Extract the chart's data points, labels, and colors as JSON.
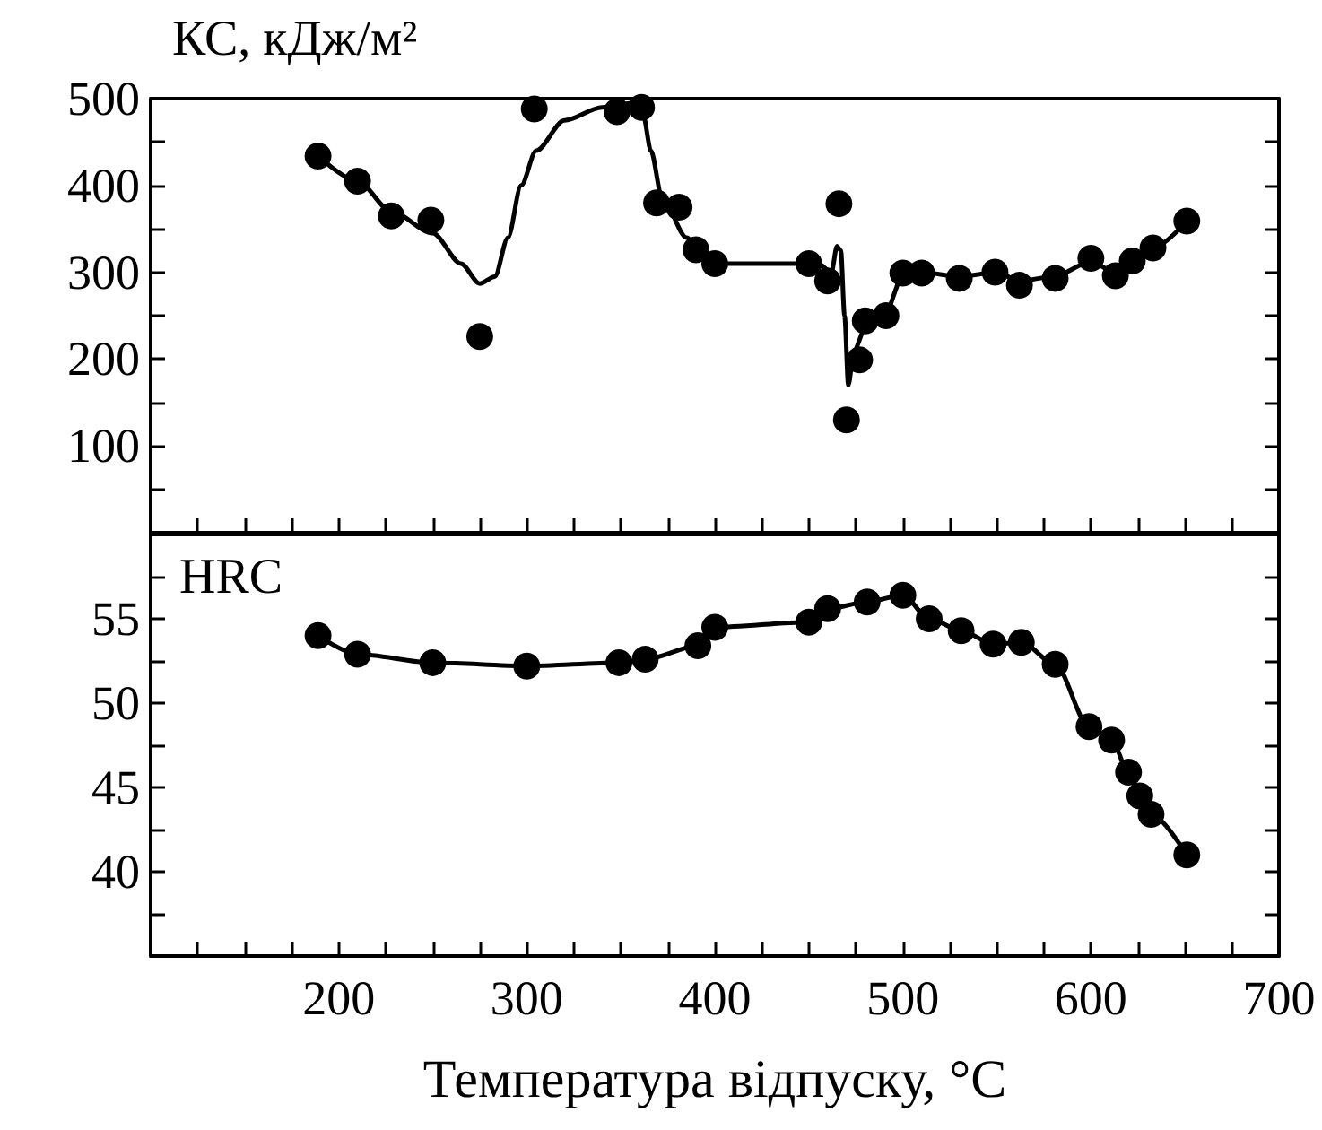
{
  "chart_data": [
    {
      "type": "scatter",
      "ylabel": "КС, кДж/м²",
      "xlim": [
        100,
        700
      ],
      "xticks": [
        {
          "value": 100,
          "label": null
        },
        {
          "value": 125,
          "label": null
        },
        {
          "value": 150,
          "label": null
        },
        {
          "value": 175,
          "label": null
        },
        {
          "value": 200,
          "label": null
        },
        {
          "value": 225,
          "label": null
        },
        {
          "value": 250,
          "label": null
        },
        {
          "value": 275,
          "label": null
        },
        {
          "value": 300,
          "label": null
        },
        {
          "value": 325,
          "label": null
        },
        {
          "value": 350,
          "label": null
        },
        {
          "value": 375,
          "label": null
        },
        {
          "value": 400,
          "label": null
        },
        {
          "value": 425,
          "label": null
        },
        {
          "value": 450,
          "label": null
        },
        {
          "value": 475,
          "label": null
        },
        {
          "value": 500,
          "label": null
        },
        {
          "value": 525,
          "label": null
        },
        {
          "value": 550,
          "label": null
        },
        {
          "value": 575,
          "label": null
        },
        {
          "value": 600,
          "label": null
        },
        {
          "value": 625,
          "label": null
        },
        {
          "value": 650,
          "label": null
        },
        {
          "value": 675,
          "label": null
        },
        {
          "value": 700,
          "label": null
        }
      ],
      "ylim": [
        0,
        500
      ],
      "yticks": [
        {
          "value": 0,
          "label": null
        },
        {
          "value": 50,
          "label": null
        },
        100,
        {
          "value": 150,
          "label": null
        },
        200,
        {
          "value": 250,
          "label": null
        },
        300,
        {
          "value": 350,
          "label": null
        },
        400,
        {
          "value": 450,
          "label": null
        },
        500
      ],
      "tick_labels": "y",
      "grid": false,
      "series": [
        {
          "marker": "circle",
          "color": "#000000",
          "x": [
            189,
            210,
            228,
            249,
            275,
            304,
            348,
            361,
            369,
            381,
            390,
            400,
            450,
            460,
            466,
            470,
            477,
            480,
            491,
            500,
            510,
            530,
            549,
            562,
            581,
            600,
            613,
            622,
            633,
            651
          ],
          "values": [
            434,
            405,
            365,
            360,
            226,
            488,
            485,
            490,
            380,
            375,
            326,
            310,
            310,
            290,
            379,
            130,
            199,
            244,
            250,
            299,
            299,
            293,
            300,
            285,
            293,
            316,
            296,
            313,
            328,
            359
          ]
        },
        {
          "type": "line",
          "marker": "none",
          "color": "#000000",
          "x": [
            189,
            210,
            228,
            250,
            265,
            275,
            283,
            290,
            297,
            305,
            320,
            340,
            358,
            362,
            366,
            372,
            385,
            395,
            405,
            455,
            462,
            465,
            467,
            469,
            471,
            474,
            480,
            490,
            500,
            510,
            530,
            550,
            562,
            580,
            600,
            613,
            622,
            633,
            651
          ],
          "values": [
            434,
            405,
            370,
            345,
            310,
            287,
            295,
            340,
            400,
            440,
            475,
            490,
            495,
            480,
            440,
            385,
            340,
            315,
            310,
            310,
            300,
            330,
            325,
            250,
            170,
            210,
            235,
            250,
            295,
            300,
            295,
            300,
            290,
            295,
            312,
            300,
            313,
            328,
            359
          ]
        }
      ]
    },
    {
      "type": "line",
      "ylabel": "HRC",
      "xlabel": "Температура відпуску, °C",
      "xlim": [
        100,
        700
      ],
      "xticks": [
        {
          "value": 100,
          "label": null
        },
        {
          "value": 125,
          "label": null
        },
        {
          "value": 150,
          "label": null
        },
        {
          "value": 175,
          "label": null
        },
        {
          "value": 200,
          "label": "200"
        },
        {
          "value": 225,
          "label": null
        },
        {
          "value": 250,
          "label": null
        },
        {
          "value": 275,
          "label": null
        },
        {
          "value": 300,
          "label": "300"
        },
        {
          "value": 325,
          "label": null
        },
        {
          "value": 350,
          "label": null
        },
        {
          "value": 375,
          "label": null
        },
        {
          "value": 400,
          "label": "400"
        },
        {
          "value": 425,
          "label": null
        },
        {
          "value": 450,
          "label": null
        },
        {
          "value": 475,
          "label": null
        },
        {
          "value": 500,
          "label": "500"
        },
        {
          "value": 525,
          "label": null
        },
        {
          "value": 550,
          "label": null
        },
        {
          "value": 575,
          "label": null
        },
        {
          "value": 600,
          "label": "600"
        },
        {
          "value": 625,
          "label": null
        },
        {
          "value": 650,
          "label": null
        },
        {
          "value": 675,
          "label": null
        },
        {
          "value": 700,
          "label": "700"
        }
      ],
      "ylim": [
        35,
        60
      ],
      "yticks": [
        {
          "value": 37.5,
          "label": null
        },
        40,
        {
          "value": 42.5,
          "label": null
        },
        45,
        {
          "value": 47.5,
          "label": null
        },
        50,
        {
          "value": 52.5,
          "label": null
        },
        55,
        {
          "value": 57.5,
          "label": null
        }
      ],
      "grid": false,
      "series": [
        {
          "marker": "circle",
          "color": "#000000",
          "x": [
            189,
            210,
            250,
            300,
            349,
            363,
            391,
            400,
            450,
            460,
            481,
            500,
            514,
            531,
            548,
            563,
            581,
            599,
            611,
            620,
            626,
            632,
            651
          ],
          "values": [
            54.0,
            52.9,
            52.4,
            52.2,
            52.4,
            52.6,
            53.4,
            54.5,
            54.8,
            55.6,
            56.0,
            56.4,
            55.0,
            54.3,
            53.5,
            53.6,
            52.3,
            48.6,
            47.8,
            45.9,
            44.5,
            43.4,
            41.0
          ]
        }
      ]
    }
  ]
}
